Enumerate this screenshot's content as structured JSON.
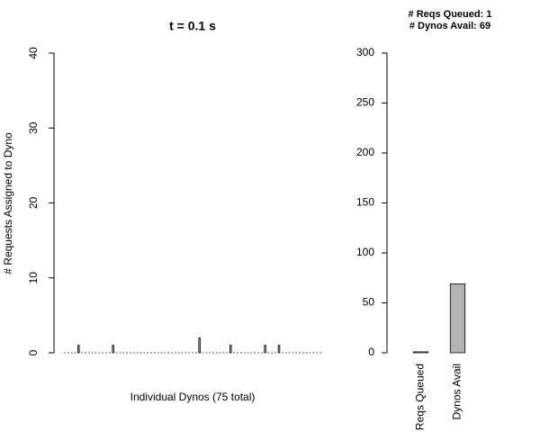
{
  "chart_data": [
    {
      "type": "bar",
      "title": "t = 0.1 s",
      "ylabel": "# Requests Assigned to Dyno",
      "xlabel": "Individual Dynos (75 total)",
      "values": [
        0,
        0,
        0,
        0,
        1,
        0,
        0,
        0,
        0,
        0,
        0,
        0,
        0,
        0,
        1,
        0,
        0,
        0,
        0,
        0,
        0,
        0,
        0,
        0,
        0,
        0,
        0,
        0,
        0,
        0,
        0,
        0,
        0,
        0,
        0,
        0,
        0,
        0,
        0,
        2,
        0,
        0,
        0,
        0,
        0,
        0,
        0,
        0,
        1,
        0,
        0,
        0,
        0,
        0,
        0,
        0,
        0,
        0,
        1,
        0,
        0,
        0,
        1,
        0,
        0,
        0,
        0,
        0,
        0,
        0,
        0,
        0,
        0,
        0,
        0
      ],
      "color": "#b3b3b3",
      "ylim": [
        0,
        40
      ],
      "yticks": [
        0,
        10,
        20,
        30,
        40
      ]
    },
    {
      "type": "bar",
      "annotations": [
        "# Reqs Queued: 1",
        "# Dynos Avail: 69"
      ],
      "categories": [
        "Reqs Queued",
        "Dynos Avail"
      ],
      "values": [
        1,
        69
      ],
      "color": "#b3b3b3",
      "ylim": [
        0,
        300
      ],
      "yticks": [
        0,
        50,
        100,
        150,
        200,
        250,
        300
      ]
    }
  ]
}
